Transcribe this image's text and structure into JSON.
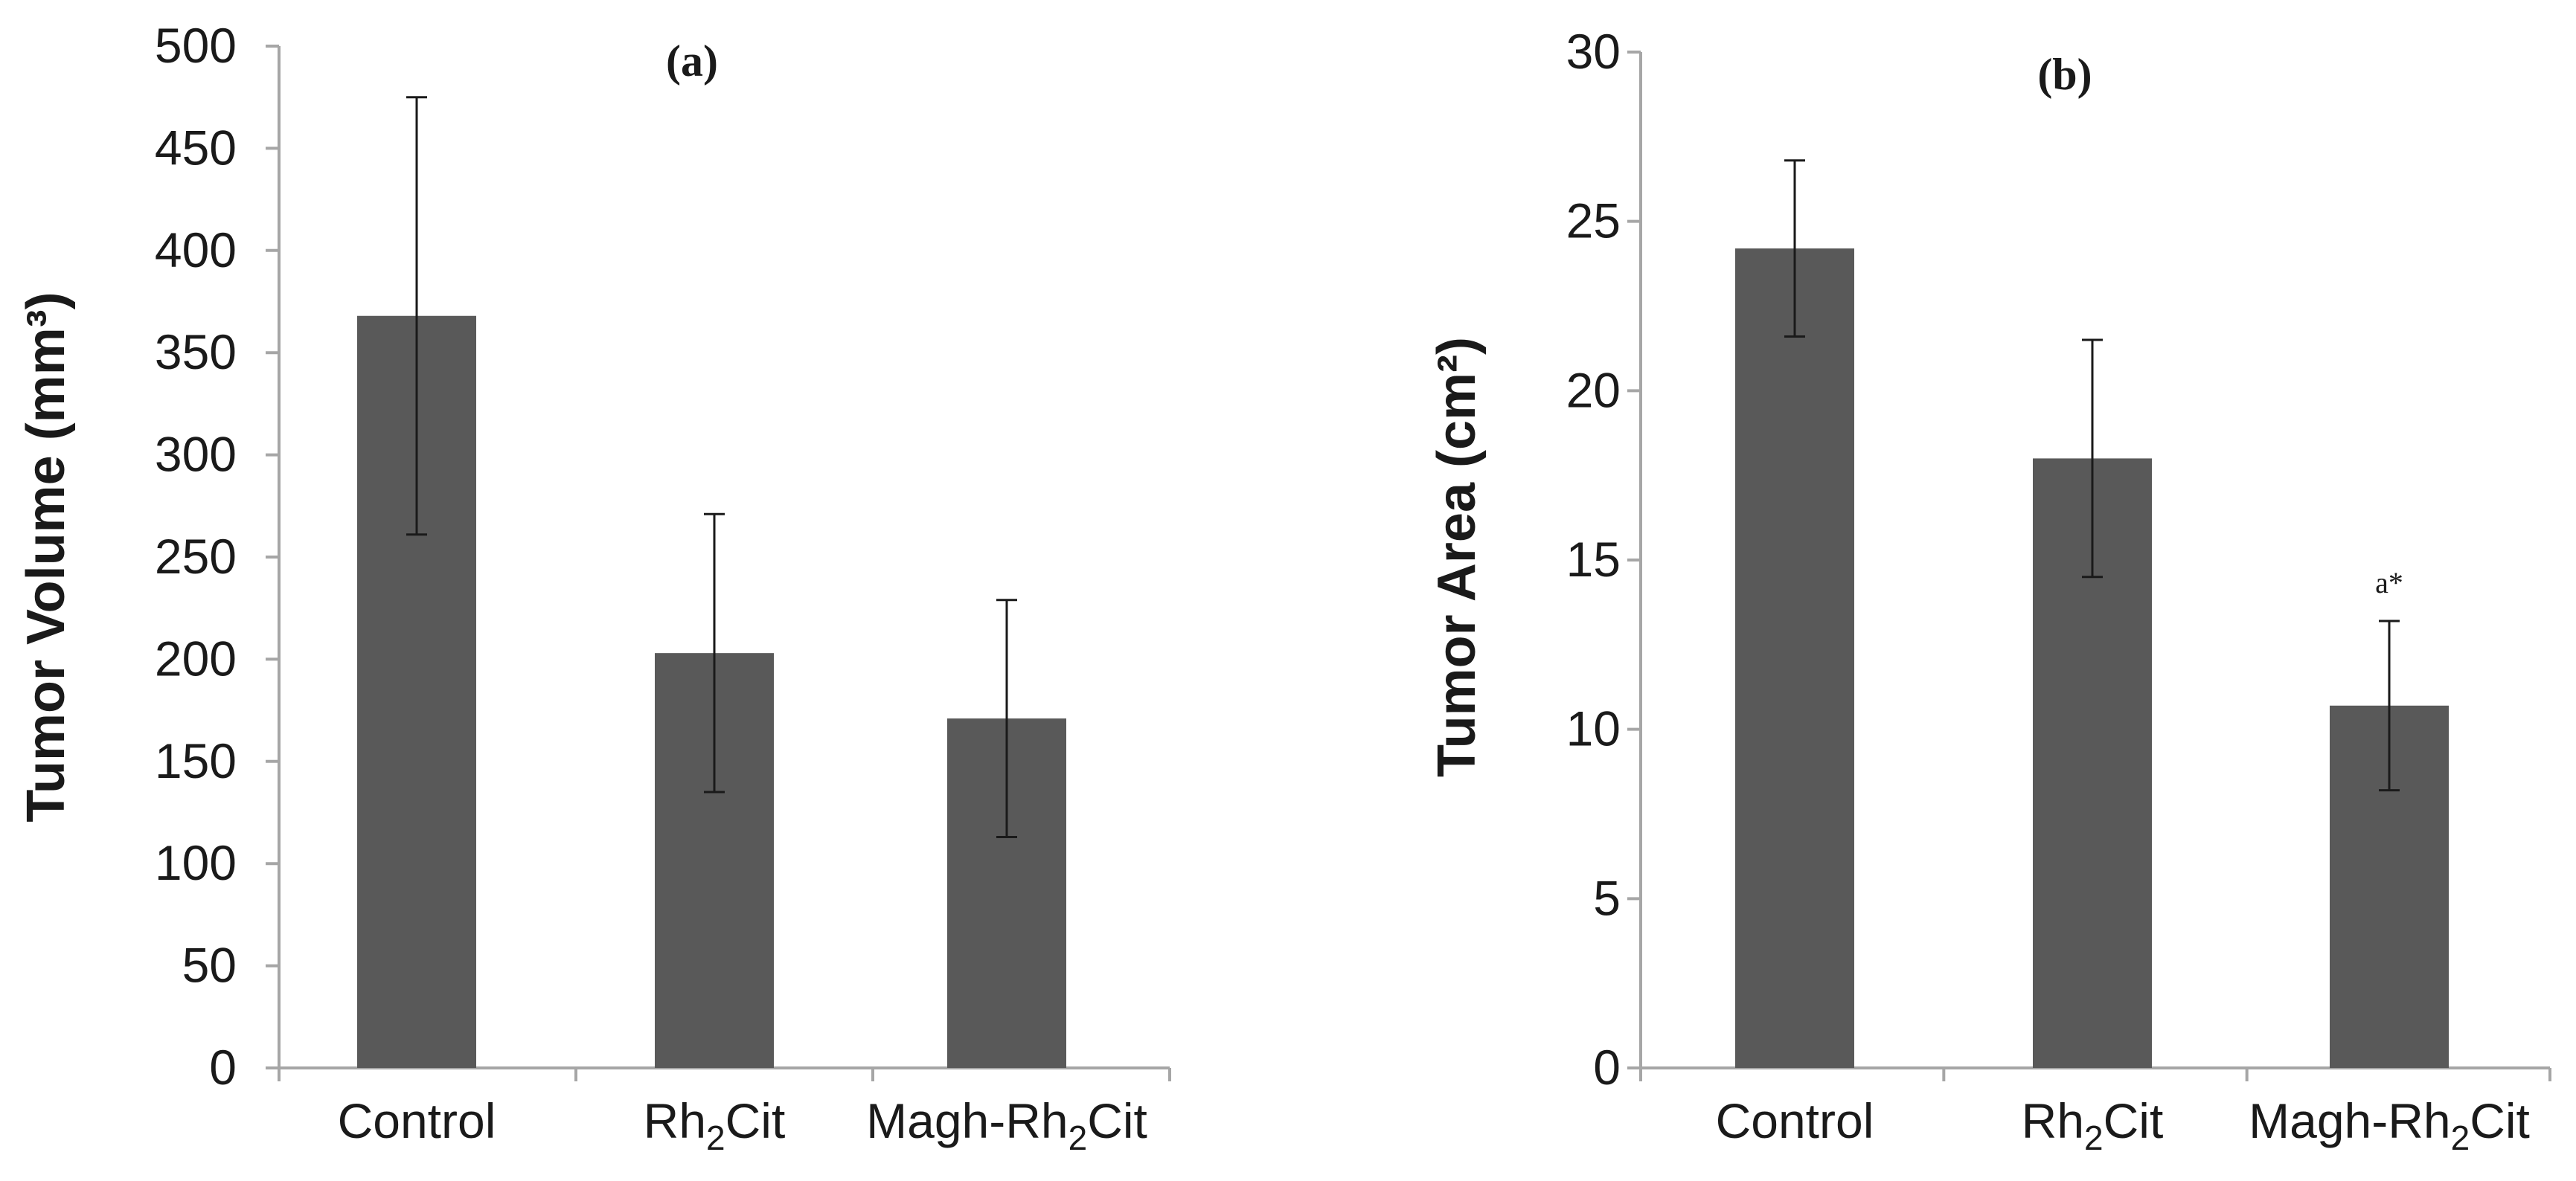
{
  "chart_data": [
    {
      "type": "bar",
      "title": "(a)",
      "xlabel": "",
      "ylabel": "Tumor Volume (mm³)",
      "ylim": [
        0,
        500
      ],
      "yticks": [
        0,
        50,
        100,
        150,
        200,
        250,
        300,
        350,
        400,
        450,
        500
      ],
      "grid": false,
      "categories": [
        {
          "main": "Control",
          "sub": "",
          "rest": ""
        },
        {
          "main": "Rh",
          "sub": "2",
          "rest": "Cit"
        },
        {
          "main": "Magh-Rh",
          "sub": "2",
          "rest": "Cit"
        }
      ],
      "values": [
        368,
        203,
        171
      ],
      "errors": [
        107,
        68,
        58
      ],
      "annotations": [
        "",
        "",
        ""
      ],
      "color": "#595959"
    },
    {
      "type": "bar",
      "title": "(b)",
      "xlabel": "",
      "ylabel": "Tumor Area (cm²)",
      "ylim": [
        0,
        30
      ],
      "yticks": [
        0,
        5,
        10,
        15,
        20,
        25,
        30
      ],
      "grid": false,
      "categories": [
        {
          "main": "Control",
          "sub": "",
          "rest": ""
        },
        {
          "main": "Rh",
          "sub": "2",
          "rest": "Cit"
        },
        {
          "main": "Magh-Rh",
          "sub": "2",
          "rest": "Cit"
        }
      ],
      "values": [
        24.2,
        18.0,
        10.7
      ],
      "errors": [
        2.6,
        3.5,
        2.5
      ],
      "annotations": [
        "",
        "",
        "a*"
      ],
      "color": "#595959"
    }
  ]
}
